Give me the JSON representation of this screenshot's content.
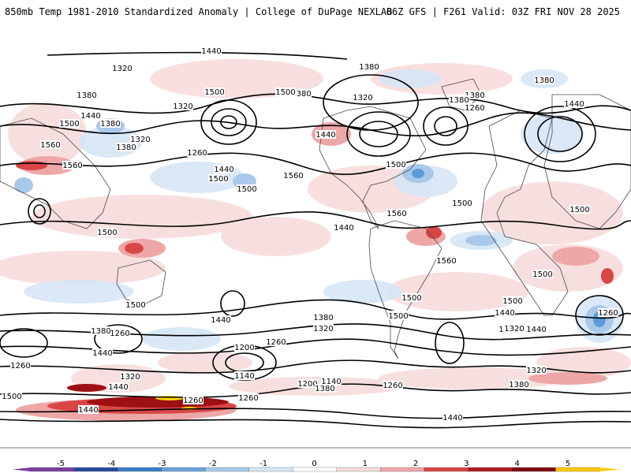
{
  "header": {
    "title": "850mb Temp 1981-2010 Standardized Anomaly | College of DuPage NEXLAB",
    "run_info": "06Z GFS | F261 Valid: 03Z FRI NOV 28 2025"
  },
  "colors": {
    "ocean": "#ffffff",
    "contour": "#000000",
    "boundary": "#4a4a4a",
    "warm_light": "#f8dcdc",
    "warm_mid": "#eea7a7",
    "warm_strong": "#d94646",
    "warm_deep": "#9e0f13",
    "warm_extreme": "#ffd400",
    "cool_light": "#d6e6f6",
    "cool_mid": "#a9c9ea",
    "cool_strong": "#5c9bd9"
  },
  "contour_labels": [
    "1440",
    "1320",
    "1380",
    "1500",
    "1320",
    "1380",
    "1380",
    "1320",
    "1440",
    "1500",
    "1560",
    "1380",
    "1260",
    "1560",
    "1440",
    "1500",
    "1500",
    "1560",
    "1440",
    "1320",
    "1380",
    "1500",
    "1500",
    "1560",
    "1500",
    "1500",
    "1500",
    "1440",
    "1380",
    "1260",
    "1380",
    "1380",
    "1440",
    "1560",
    "1500",
    "1500",
    "1500",
    "1500",
    "1440",
    "1320",
    "1260",
    "1500",
    "1440",
    "1380",
    "1320",
    "1260",
    "1200",
    "1260",
    "1500",
    "1440",
    "1140",
    "1200",
    "1140",
    "1260",
    "1380",
    "1440",
    "1320",
    "1380",
    "1440",
    "1440",
    "1380",
    "1320",
    "1320",
    "1260",
    "1260",
    "1500",
    "1260",
    "1440"
  ],
  "legend": {
    "ticks": [
      "-5",
      "-4",
      "-3",
      "-2",
      "-1",
      "0",
      "1",
      "2",
      "3",
      "4",
      "5"
    ],
    "colors": [
      "#7b3fa0",
      "#2a4aa0",
      "#3a7cc9",
      "#6aa3dd",
      "#a9c9ea",
      "#d6e6f6",
      "#ffffff",
      "#f8dcdc",
      "#eea7a7",
      "#d94646",
      "#b01d22",
      "#7d0b0f",
      "#ffc800"
    ]
  }
}
